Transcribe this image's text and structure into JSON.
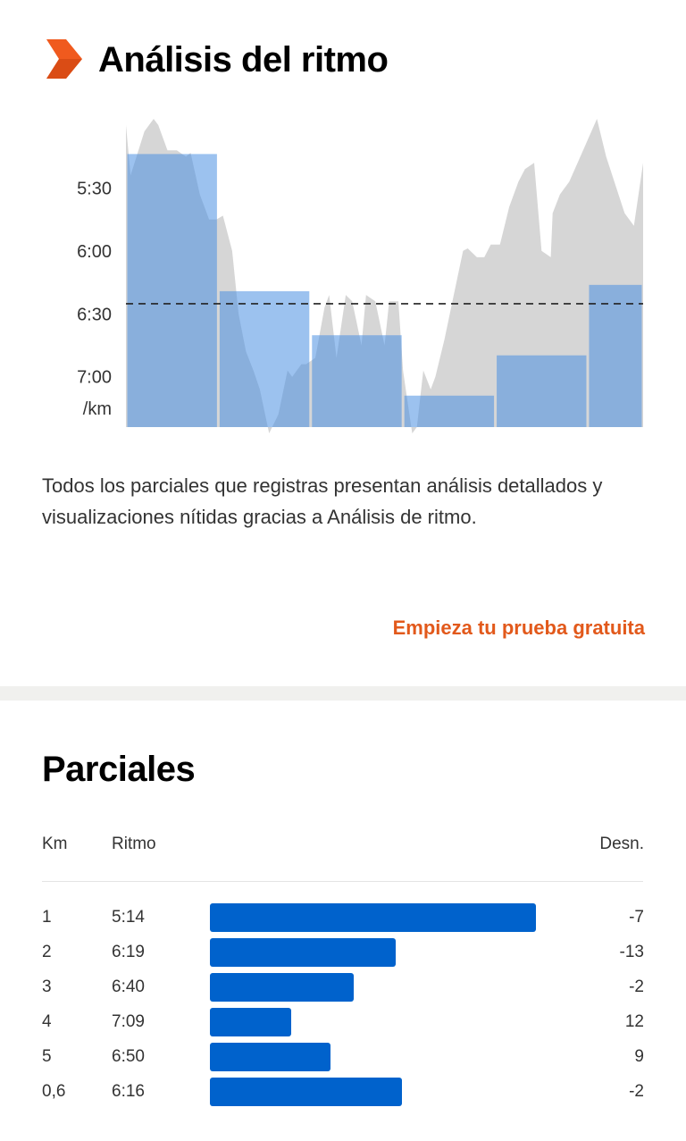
{
  "pace_analysis": {
    "title": "Análisis del ritmo",
    "icon": "orange-chevron-logo-icon",
    "description": "Todos los parciales que registras presentan análisis detallados y visualizaciones nítidas gracias a Análisis de ritmo.",
    "cta_label": "Empieza tu prueba gratuita"
  },
  "chart_data": {
    "type": "bar",
    "y_ticks": [
      "5:30",
      "6:00",
      "6:30",
      "7:00"
    ],
    "y_unit": "/km",
    "y_axis_inverted": true,
    "ylim_pace_min": [
      5.0,
      7.4
    ],
    "average_pace_line": 6.42,
    "bars": [
      {
        "km_start": 0.0,
        "km_end": 1.0,
        "pace": 5.23
      },
      {
        "km_start": 1.0,
        "km_end": 2.0,
        "pace": 6.32
      },
      {
        "km_start": 2.0,
        "km_end": 3.0,
        "pace": 6.67
      },
      {
        "km_start": 3.0,
        "km_end": 4.0,
        "pace": 7.15
      },
      {
        "km_start": 4.0,
        "km_end": 5.0,
        "pace": 6.83
      },
      {
        "km_start": 5.0,
        "km_end": 5.6,
        "pace": 6.27
      }
    ],
    "area_profile_km": [
      0,
      0.05,
      0.2,
      0.3,
      0.35,
      0.45,
      0.55,
      0.65,
      0.7,
      0.8,
      0.9,
      0.98,
      1.05,
      1.15,
      1.22,
      1.3,
      1.38,
      1.45,
      1.55,
      1.65,
      1.75,
      1.8,
      1.9,
      1.95,
      2.05,
      2.15,
      2.2,
      2.28,
      2.38,
      2.45,
      2.55,
      2.6,
      2.7,
      2.8,
      2.85,
      2.95,
      3.0,
      3.05,
      3.1,
      3.15,
      3.22,
      3.3,
      3.35,
      3.45,
      3.55,
      3.65,
      3.7,
      3.8,
      3.88,
      3.95,
      4.05,
      4.15,
      4.25,
      4.32,
      4.42,
      4.5,
      4.6,
      4.62,
      4.7,
      4.8,
      4.95,
      5.1,
      5.2,
      5.4,
      5.5,
      5.6
    ],
    "area_profile_pace": [
      5.0,
      5.4,
      5.05,
      4.95,
      5.0,
      5.2,
      5.2,
      5.25,
      5.22,
      5.55,
      5.75,
      5.75,
      5.72,
      6.0,
      6.5,
      6.8,
      6.95,
      7.1,
      7.45,
      7.3,
      6.95,
      7.0,
      6.9,
      6.9,
      6.85,
      6.45,
      6.35,
      6.85,
      6.35,
      6.4,
      6.75,
      6.35,
      6.4,
      6.75,
      6.4,
      6.4,
      6.95,
      7.2,
      7.45,
      7.4,
      6.95,
      7.1,
      7.0,
      6.7,
      6.35,
      6.0,
      5.98,
      6.05,
      6.05,
      5.95,
      5.95,
      5.65,
      5.45,
      5.35,
      5.3,
      6.0,
      6.05,
      5.7,
      5.55,
      5.45,
      5.2,
      4.95,
      5.25,
      5.7,
      5.8,
      5.3
    ]
  },
  "splits": {
    "title": "Parciales",
    "headers": {
      "km": "Km",
      "pace": "Ritmo",
      "elev": "Desn."
    },
    "rows": [
      {
        "km": "1",
        "pace": "5:14",
        "elev": "-7",
        "bar_fraction": 1.0
      },
      {
        "km": "2",
        "pace": "6:19",
        "elev": "-13",
        "bar_fraction": 0.57
      },
      {
        "km": "3",
        "pace": "6:40",
        "elev": "-2",
        "bar_fraction": 0.44
      },
      {
        "km": "4",
        "pace": "7:09",
        "elev": "12",
        "bar_fraction": 0.25
      },
      {
        "km": "5",
        "pace": "6:50",
        "elev": "9",
        "bar_fraction": 0.37
      },
      {
        "km": "0,6",
        "pace": "6:16",
        "elev": "-2",
        "bar_fraction": 0.59
      }
    ],
    "bar_color": "#0062cc"
  },
  "colors": {
    "accent": "#e2591b",
    "bar_blue": "#0062cc",
    "chart_bar": "#4a90e2",
    "chart_area": "#cfcfcf"
  }
}
